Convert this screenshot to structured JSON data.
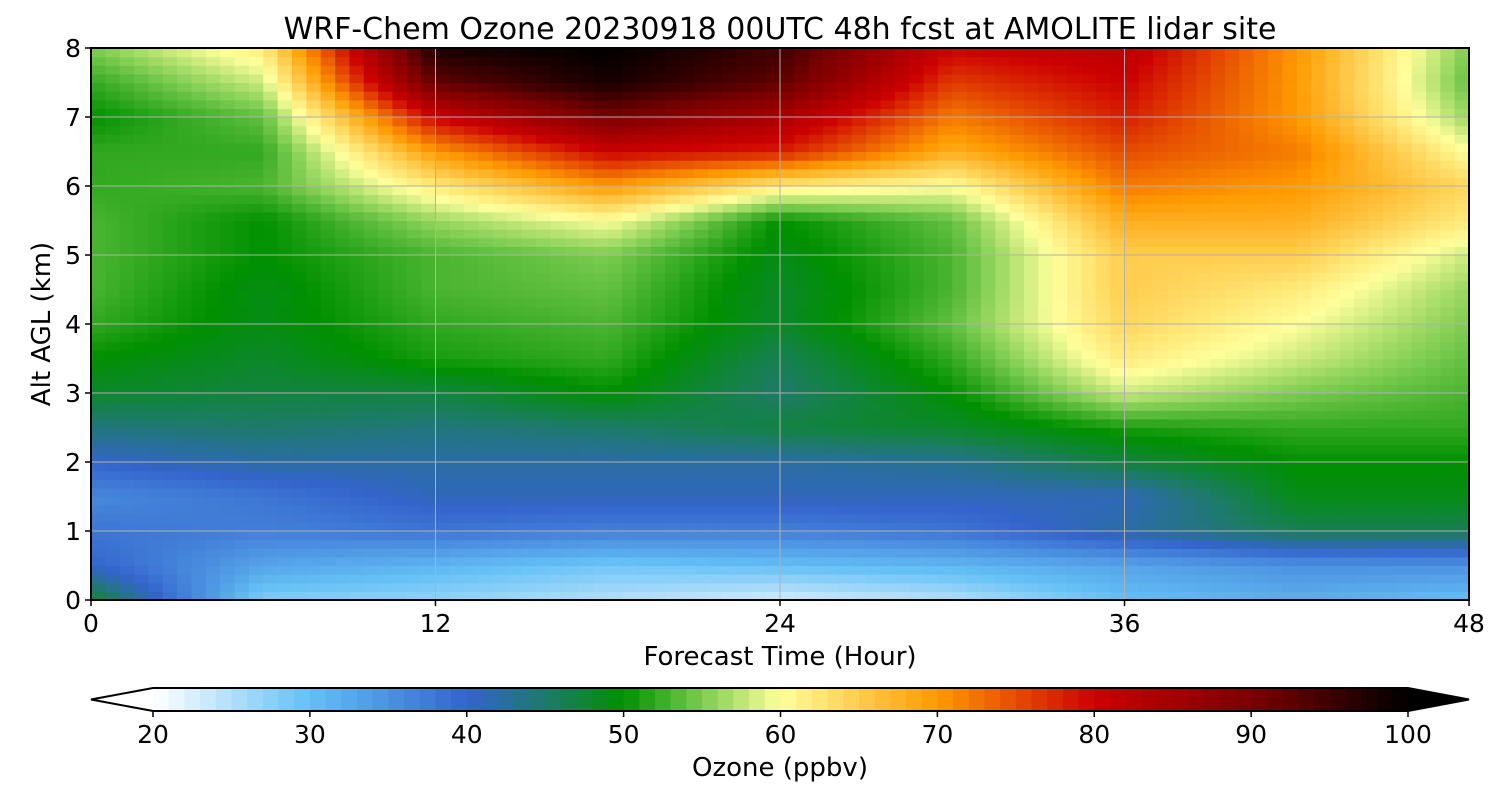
{
  "chart_data": {
    "type": "heatmap",
    "title": "WRF-Chem Ozone  20230918 00UTC 48h fcst at AMOLITE lidar site",
    "xlabel": "Forecast Time (Hour)",
    "ylabel": "Alt AGL (km)",
    "xlim": [
      0,
      48
    ],
    "ylim": [
      0,
      8
    ],
    "xticks": [
      "0",
      "12",
      "24",
      "36",
      "48"
    ],
    "yticks": [
      "0",
      "1",
      "2",
      "3",
      "4",
      "5",
      "6",
      "7",
      "8"
    ],
    "grid": true,
    "x": [
      0,
      6,
      12,
      18,
      24,
      30,
      36,
      42,
      48
    ],
    "y": [
      0,
      0.5,
      1,
      1.5,
      2,
      2.5,
      3,
      3.5,
      4,
      4.5,
      5,
      5.5,
      6,
      6.5,
      7,
      7.5,
      8
    ],
    "z": [
      [
        48,
        28,
        27,
        25,
        23,
        25,
        30,
        32,
        30
      ],
      [
        40,
        33,
        31,
        29,
        30,
        31,
        33,
        35,
        35
      ],
      [
        38,
        37,
        38,
        37,
        37,
        38,
        42,
        46,
        46
      ],
      [
        36,
        38,
        41,
        41,
        41,
        41,
        41,
        49,
        49
      ],
      [
        40,
        42,
        42,
        42,
        42,
        43,
        47,
        50,
        50
      ],
      [
        44,
        45,
        44,
        45,
        47,
        48,
        51,
        52,
        52
      ],
      [
        48,
        47,
        47,
        50,
        45,
        50,
        58,
        55,
        53
      ],
      [
        50,
        48,
        51,
        52,
        46,
        52,
        62,
        58,
        54
      ],
      [
        52,
        49,
        52,
        53,
        48,
        54,
        64,
        60,
        55
      ],
      [
        53,
        49,
        53,
        54,
        48,
        53,
        65,
        62,
        56
      ],
      [
        53,
        50,
        53,
        55,
        49,
        53,
        65,
        65,
        58
      ],
      [
        53,
        50,
        56,
        60,
        50,
        54,
        68,
        68,
        62
      ],
      [
        52,
        53,
        62,
        70,
        62,
        60,
        72,
        70,
        64
      ],
      [
        52,
        52,
        70,
        80,
        78,
        68,
        75,
        72,
        60
      ],
      [
        50,
        54,
        80,
        90,
        84,
        72,
        78,
        70,
        56
      ],
      [
        52,
        58,
        92,
        98,
        92,
        76,
        80,
        70,
        54
      ],
      [
        55,
        62,
        98,
        100,
        95,
        80,
        82,
        70,
        55
      ]
    ],
    "colorbar": {
      "label": "Ozone  (ppbv)",
      "ticks": [
        "20",
        "30",
        "40",
        "50",
        "60",
        "70",
        "80",
        "90",
        "100"
      ],
      "min": 20,
      "max": 100,
      "extend": "both",
      "orientation": "horizontal",
      "stops": [
        {
          "v": 20,
          "c": "#ffffff"
        },
        {
          "v": 30,
          "c": "#64c0f5"
        },
        {
          "v": 40,
          "c": "#3464cc"
        },
        {
          "v": 45,
          "c": "#1e7a6a"
        },
        {
          "v": 50,
          "c": "#009000"
        },
        {
          "v": 55,
          "c": "#7ccc50"
        },
        {
          "v": 60,
          "c": "#ffff9c"
        },
        {
          "v": 70,
          "c": "#ff9a00"
        },
        {
          "v": 80,
          "c": "#cc0000"
        },
        {
          "v": 90,
          "c": "#7a0000"
        },
        {
          "v": 100,
          "c": "#000000"
        }
      ]
    }
  }
}
